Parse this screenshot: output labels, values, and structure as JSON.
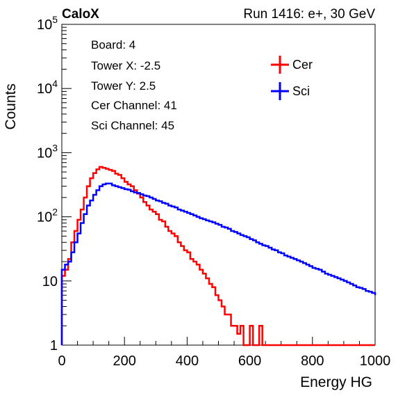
{
  "header": {
    "left": "CaloX",
    "right": "Run 1416: e+, 30 GeV"
  },
  "info_lines": [
    "Board: 4",
    "Tower X: -2.5",
    "Tower Y: 2.5",
    "Cer Channel: 41",
    "Sci Channel: 45"
  ],
  "chart_data": {
    "type": "line",
    "style": "histogram-step",
    "xlabel": "Energy HG",
    "ylabel": "Counts",
    "xlim": [
      0,
      1000
    ],
    "ylim": [
      1,
      100000
    ],
    "yscale": "log",
    "x_ticks": [
      "0",
      "200",
      "400",
      "600",
      "800",
      "1000"
    ],
    "y_ticks": [
      {
        "value": 1,
        "base": "1",
        "exp": ""
      },
      {
        "value": 10,
        "base": "10",
        "exp": ""
      },
      {
        "value": 100,
        "base": "10",
        "exp": "2"
      },
      {
        "value": 1000,
        "base": "10",
        "exp": "3"
      },
      {
        "value": 10000,
        "base": "10",
        "exp": "4"
      },
      {
        "value": 100000,
        "base": "10",
        "exp": "5"
      }
    ],
    "legend_position": "top-right",
    "series": [
      {
        "name": "Cer",
        "color": "#ff0000",
        "x": [
          0,
          10,
          20,
          30,
          40,
          50,
          60,
          70,
          80,
          90,
          100,
          110,
          120,
          130,
          140,
          150,
          160,
          170,
          180,
          190,
          200,
          210,
          220,
          230,
          240,
          250,
          260,
          270,
          280,
          290,
          300,
          310,
          320,
          330,
          340,
          350,
          360,
          370,
          380,
          390,
          400,
          410,
          420,
          430,
          440,
          450,
          460,
          470,
          480,
          490,
          500,
          510,
          520,
          530,
          540,
          550,
          560,
          570,
          580,
          590,
          600,
          610,
          620,
          630,
          640,
          650,
          660,
          670,
          680,
          690,
          700,
          710,
          720,
          730,
          740,
          750,
          760,
          770,
          780,
          790,
          800,
          810,
          820,
          830,
          840,
          850,
          860,
          870,
          880,
          890,
          900,
          910,
          920,
          930,
          940,
          950,
          960,
          970,
          980,
          990,
          1000
        ],
        "values": [
          12,
          15,
          22,
          40,
          60,
          90,
          130,
          200,
          300,
          400,
          480,
          550,
          600,
          580,
          560,
          540,
          520,
          470,
          450,
          400,
          350,
          320,
          300,
          260,
          230,
          200,
          170,
          150,
          130,
          120,
          110,
          90,
          85,
          70,
          60,
          55,
          50,
          40,
          35,
          30,
          28,
          22,
          20,
          18,
          15,
          13,
          11,
          9,
          8,
          6,
          5,
          4,
          3,
          3,
          2,
          2,
          1.5,
          2,
          1,
          1,
          2,
          1,
          1,
          2,
          1,
          1,
          1,
          1,
          1,
          1,
          1,
          1,
          1,
          1,
          1,
          1,
          1,
          1,
          1,
          1,
          1,
          1,
          1,
          1,
          1,
          1,
          1,
          1,
          1,
          1,
          1,
          1,
          1,
          1,
          1,
          1,
          1,
          1,
          1,
          1,
          1
        ]
      },
      {
        "name": "Sci",
        "color": "#0000ff",
        "x": [
          0,
          10,
          20,
          30,
          40,
          50,
          60,
          70,
          80,
          90,
          100,
          110,
          120,
          130,
          140,
          150,
          160,
          170,
          180,
          190,
          200,
          210,
          220,
          230,
          240,
          250,
          260,
          270,
          280,
          290,
          300,
          310,
          320,
          330,
          340,
          350,
          360,
          370,
          380,
          390,
          400,
          410,
          420,
          430,
          440,
          450,
          460,
          470,
          480,
          490,
          500,
          510,
          520,
          530,
          540,
          550,
          560,
          570,
          580,
          590,
          600,
          610,
          620,
          630,
          640,
          650,
          660,
          670,
          680,
          690,
          700,
          710,
          720,
          730,
          740,
          750,
          760,
          770,
          780,
          790,
          800,
          810,
          820,
          830,
          840,
          850,
          860,
          870,
          880,
          890,
          900,
          910,
          920,
          930,
          940,
          950,
          960,
          970,
          980,
          990,
          1000
        ],
        "values": [
          15,
          18,
          20,
          28,
          40,
          55,
          80,
          110,
          150,
          180,
          220,
          260,
          300,
          320,
          330,
          330,
          310,
          300,
          290,
          280,
          270,
          265,
          250,
          240,
          235,
          225,
          215,
          210,
          200,
          190,
          180,
          175,
          165,
          160,
          150,
          145,
          140,
          130,
          125,
          120,
          115,
          110,
          105,
          100,
          95,
          92,
          88,
          85,
          82,
          78,
          75,
          70,
          68,
          65,
          60,
          58,
          55,
          52,
          50,
          48,
          45,
          43,
          40,
          38,
          36,
          35,
          33,
          31,
          30,
          28,
          27,
          25,
          24,
          23,
          22,
          21,
          20,
          19,
          18,
          17,
          16,
          15.5,
          15,
          14,
          13,
          12.5,
          12,
          11.5,
          11,
          10.5,
          10,
          9.5,
          9,
          8.5,
          8,
          7.8,
          7.5,
          7,
          6.8,
          6.5,
          6
        ]
      }
    ]
  }
}
